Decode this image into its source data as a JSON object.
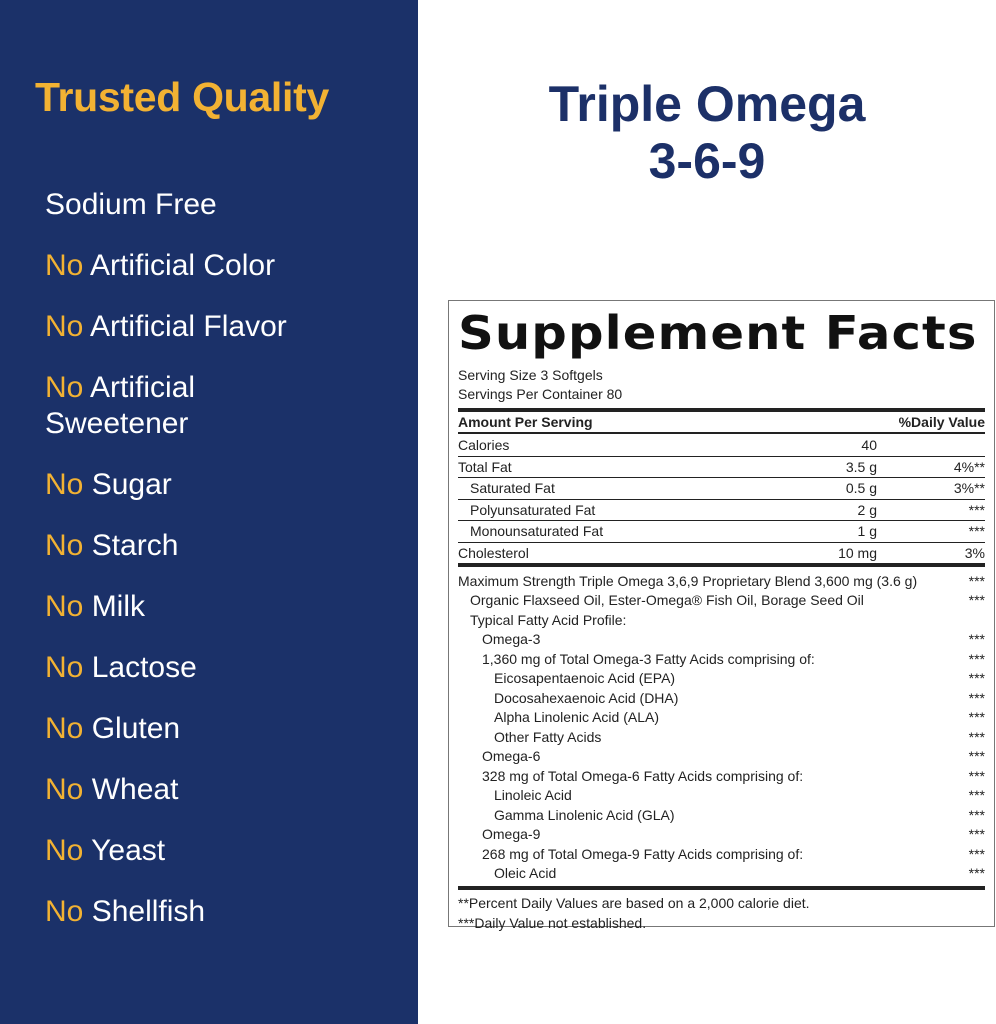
{
  "left": {
    "title": "Trusted Quality",
    "claims": [
      {
        "prefix": "",
        "text": "Sodium Free"
      },
      {
        "prefix": "No",
        "text": " Artificial Color"
      },
      {
        "prefix": "No",
        "text": " Artificial Flavor"
      },
      {
        "prefix": "No",
        "text": " Artificial",
        "text2": "Sweetener"
      },
      {
        "prefix": "No",
        "text": " Sugar"
      },
      {
        "prefix": "No",
        "text": " Starch"
      },
      {
        "prefix": "No",
        "text": " Milk"
      },
      {
        "prefix": "No",
        "text": " Lactose"
      },
      {
        "prefix": "No",
        "text": " Gluten"
      },
      {
        "prefix": "No",
        "text": " Wheat"
      },
      {
        "prefix": "No",
        "text": " Yeast"
      },
      {
        "prefix": "No",
        "text": " Shellfish"
      }
    ]
  },
  "product": {
    "line1": "Triple Omega",
    "line2": "3-6-9"
  },
  "facts": {
    "title": "Supplement Facts",
    "serving_size": "Serving Size 3 Softgels",
    "servings": "Servings Per Container 80",
    "header_left": "Amount Per Serving",
    "header_right": "%Daily Value",
    "rows": [
      {
        "name": "Calories",
        "amount": "40",
        "dv": ""
      },
      {
        "name": "Total Fat",
        "amount": "3.5 g",
        "dv": "4%**"
      },
      {
        "name": "Saturated Fat",
        "amount": "0.5 g",
        "dv": "3%**"
      },
      {
        "name": "Polyunsaturated Fat",
        "amount": "2 g",
        "dv": "***"
      },
      {
        "name": "Monounsaturated Fat",
        "amount": "1 g",
        "dv": "***"
      },
      {
        "name": "Cholesterol",
        "amount": "10 mg",
        "dv": "3%"
      }
    ],
    "blend": [
      {
        "name": "Maximum Strength Triple Omega 3,6,9 Proprietary Blend  3,600 mg (3.6 g)",
        "dv": "***"
      },
      {
        "name": "Organic Flaxseed Oil, Ester-Omega® Fish Oil, Borage Seed Oil",
        "dv": "***"
      },
      {
        "name": "Typical Fatty Acid Profile:",
        "dv": ""
      },
      {
        "name": "Omega-3",
        "dv": "***"
      },
      {
        "name": "1,360 mg of Total Omega-3 Fatty Acids comprising of:",
        "dv": "***"
      },
      {
        "name": "Eicosapentaenoic Acid (EPA)",
        "dv": "***"
      },
      {
        "name": "Docosahexaenoic Acid (DHA)",
        "dv": "***"
      },
      {
        "name": "Alpha Linolenic Acid (ALA)",
        "dv": "***"
      },
      {
        "name": "Other Fatty Acids",
        "dv": "***"
      },
      {
        "name": "Omega-6",
        "dv": "***"
      },
      {
        "name": "328 mg of Total Omega-6 Fatty Acids comprising of:",
        "dv": "***"
      },
      {
        "name": "Linoleic Acid",
        "dv": "***"
      },
      {
        "name": "Gamma Linolenic Acid (GLA)",
        "dv": "***"
      },
      {
        "name": "Omega-9",
        "dv": "***"
      },
      {
        "name": "268 mg of Total Omega-9 Fatty Acids comprising of:",
        "dv": "***"
      },
      {
        "name": "Oleic Acid",
        "dv": "***"
      }
    ],
    "foot1": "**Percent Daily Values are based on a 2,000 calorie diet.",
    "foot2": "***Daily Value not established."
  },
  "colors": {
    "navy": "#1b3169",
    "gold": "#f2b233"
  }
}
